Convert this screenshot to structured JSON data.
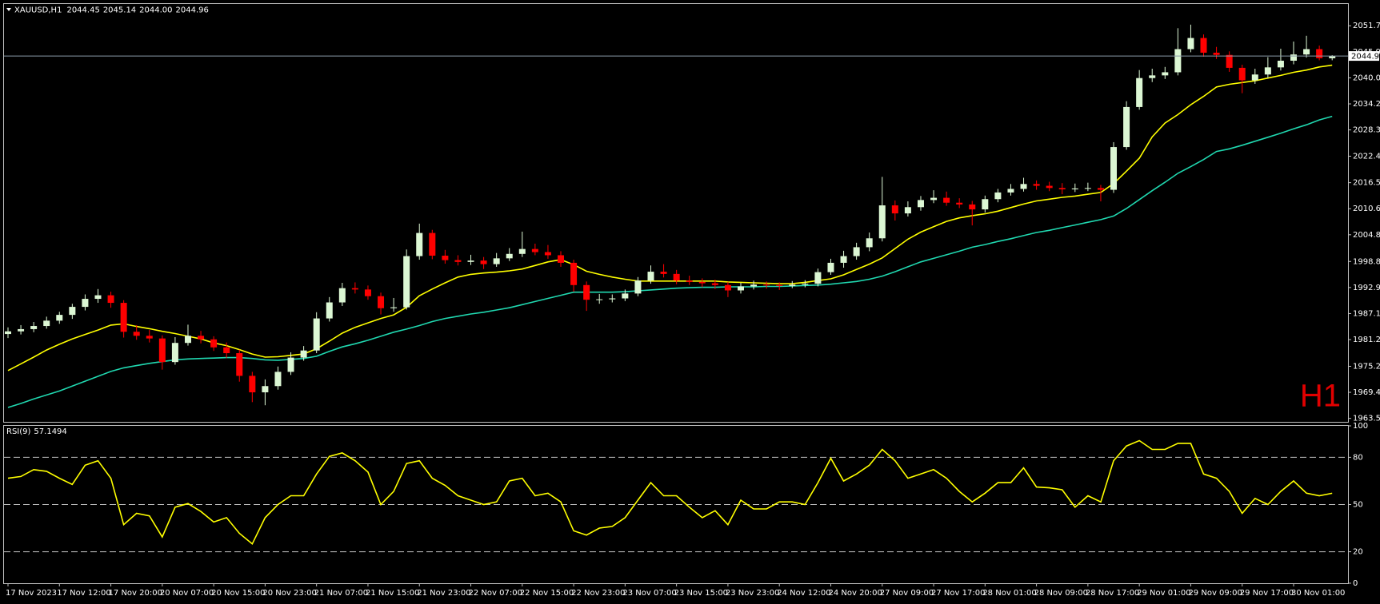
{
  "chart_data": [
    {
      "type": "candlestick",
      "title": "XAUUSD,H1",
      "timeframe_label": "H1",
      "value_labels": [
        "2044.45",
        "2045.14",
        "2044.00",
        "2044.96"
      ],
      "up_color": "#dcf7d4",
      "down_color": "#ff0000",
      "last_price_color": "#8a9aa8",
      "ylim": [
        1962.77,
        2056.64
      ],
      "yticks": [
        1963.55,
        {
          "value": 1969.4,
          "label": "1969.40"
        },
        1975.25,
        1981.25,
        {
          "value": 1987.1,
          "label": "1987.10"
        },
        1992.95,
        {
          "value": 1998.8,
          "label": "1998.80"
        },
        {
          "value": 2004.8,
          "label": "2004.80"
        },
        2010.65,
        {
          "value": 2016.5,
          "label": "2016.50"
        },
        2022.45,
        2028.35,
        {
          "value": 2034.2,
          "label": "2034.20"
        },
        2040.05,
        {
          "value": 2045.9,
          "label": "2045.90"
        },
        2051.75
      ],
      "categories": [
        "17 Nov 2023",
        null,
        null,
        null,
        "17 Nov 12:00",
        null,
        null,
        null,
        "17 Nov 20:00",
        null,
        null,
        null,
        "20 Nov 07:00",
        null,
        null,
        null,
        "20 Nov 15:00",
        null,
        null,
        null,
        "20 Nov 23:00",
        null,
        null,
        null,
        "21 Nov 07:00",
        null,
        null,
        null,
        "21 Nov 15:00",
        null,
        null,
        null,
        "21 Nov 23:00",
        null,
        null,
        null,
        "22 Nov 07:00",
        null,
        null,
        null,
        "22 Nov 15:00",
        null,
        null,
        null,
        "22 Nov 23:00",
        null,
        null,
        null,
        "23 Nov 07:00",
        null,
        null,
        null,
        "23 Nov 15:00",
        null,
        null,
        null,
        "23 Nov 23:00",
        null,
        null,
        null,
        "24 Nov 12:00",
        null,
        null,
        null,
        "24 Nov 20:00",
        null,
        null,
        null,
        "27 Nov 09:00",
        null,
        null,
        null,
        "27 Nov 17:00",
        null,
        null,
        null,
        "28 Nov 01:00",
        null,
        null,
        null,
        "28 Nov 09:00",
        null,
        null,
        null,
        "28 Nov 17:00",
        null,
        null,
        null,
        "29 Nov 01:00",
        null,
        null,
        null,
        "29 Nov 09:00",
        null,
        null,
        null,
        "29 Nov 17:00",
        null,
        null,
        null,
        "30 Nov 01:00",
        null,
        null,
        null
      ],
      "ohlc": [
        [
          1982.5,
          1984.0,
          1981.6,
          1983.1
        ],
        [
          1983.1,
          1984.5,
          1982.4,
          1983.6
        ],
        [
          1983.6,
          1985.2,
          1982.9,
          1984.3
        ],
        [
          1984.3,
          1986.4,
          1983.7,
          1985.5
        ],
        [
          1985.5,
          1987.5,
          1984.8,
          1986.8
        ],
        [
          1986.8,
          1989.3,
          1985.9,
          1988.6
        ],
        [
          1988.6,
          1991.4,
          1987.8,
          1990.4
        ],
        [
          1990.4,
          1992.6,
          1989.5,
          1991.2
        ],
        [
          1991.2,
          1992.0,
          1988.4,
          1989.5
        ],
        [
          1989.5,
          1990.1,
          1981.7,
          1983.0
        ],
        [
          1983.0,
          1984.5,
          1981.2,
          1982.1
        ],
        [
          1982.1,
          1983.4,
          1980.6,
          1981.5
        ],
        [
          1981.5,
          1982.2,
          1974.5,
          1976.2
        ],
        [
          1976.2,
          1981.8,
          1975.6,
          1980.5
        ],
        [
          1980.5,
          1984.6,
          1979.9,
          1982.1
        ],
        [
          1982.1,
          1983.2,
          1980.4,
          1981.3
        ],
        [
          1981.3,
          1982.0,
          1978.7,
          1979.5
        ],
        [
          1979.5,
          1980.6,
          1977.1,
          1978.2
        ],
        [
          1978.2,
          1979.0,
          1971.8,
          1973.1
        ],
        [
          1973.1,
          1974.0,
          1967.2,
          1969.4
        ],
        [
          1969.4,
          1972.3,
          1966.5,
          1970.8
        ],
        [
          1970.8,
          1975.2,
          1970.0,
          1974.0
        ],
        [
          1974.0,
          1978.4,
          1973.3,
          1977.2
        ],
        [
          1977.2,
          1979.8,
          1976.5,
          1978.8
        ],
        [
          1978.8,
          1987.4,
          1978.2,
          1986.0
        ],
        [
          1986.0,
          1990.8,
          1985.3,
          1989.6
        ],
        [
          1989.6,
          1994.0,
          1988.8,
          1992.8
        ],
        [
          1992.8,
          1994.1,
          1991.6,
          1992.5
        ],
        [
          1992.5,
          1993.4,
          1990.2,
          1991.0
        ],
        [
          1991.0,
          1991.8,
          1986.9,
          1988.3
        ],
        [
          1988.3,
          1990.6,
          1987.5,
          1988.5
        ],
        [
          1988.5,
          2001.5,
          1988.0,
          2000.0
        ],
        [
          2000.0,
          2007.3,
          1999.2,
          2005.2
        ],
        [
          2005.2,
          2005.9,
          1999.3,
          2000.1
        ],
        [
          2000.1,
          2001.4,
          1998.3,
          1999.1
        ],
        [
          1999.1,
          2000.2,
          1997.9,
          1998.7
        ],
        [
          1998.7,
          2000.3,
          1998.0,
          1999.0
        ],
        [
          1999.0,
          1999.8,
          1997.1,
          1998.2
        ],
        [
          1998.2,
          2000.7,
          1997.6,
          1999.5
        ],
        [
          1999.5,
          2001.8,
          1998.9,
          2000.5
        ],
        [
          2000.5,
          2005.5,
          1999.8,
          2001.6
        ],
        [
          2001.6,
          2002.8,
          2000.2,
          2000.9
        ],
        [
          2000.9,
          2002.5,
          1999.4,
          2000.2
        ],
        [
          2000.2,
          2001.1,
          1997.6,
          1998.5
        ],
        [
          1998.5,
          1999.2,
          1992.0,
          1993.5
        ],
        [
          1993.5,
          1994.3,
          1987.7,
          1990.2
        ],
        [
          1990.2,
          1991.5,
          1989.3,
          1990.3
        ],
        [
          1990.3,
          1991.4,
          1989.6,
          1990.5
        ],
        [
          1990.5,
          1992.5,
          1989.9,
          1991.6
        ],
        [
          1991.6,
          1995.3,
          1991.0,
          1994.5
        ],
        [
          1994.5,
          1997.9,
          1993.8,
          1996.5
        ],
        [
          1996.5,
          1998.2,
          1995.2,
          1996.0
        ],
        [
          1996.0,
          1996.9,
          1993.7,
          1994.5
        ],
        [
          1994.5,
          1995.6,
          1993.5,
          1994.2
        ],
        [
          1994.2,
          1995.0,
          1993.0,
          1993.9
        ],
        [
          1993.9,
          1994.7,
          1992.6,
          1993.5
        ],
        [
          1993.5,
          1994.2,
          1990.8,
          1992.3
        ],
        [
          1992.3,
          1994.0,
          1991.6,
          1993.2
        ],
        [
          1993.2,
          1994.5,
          1992.5,
          1993.6
        ],
        [
          1993.6,
          1994.3,
          1992.7,
          1993.5
        ],
        [
          1993.5,
          1994.1,
          1992.4,
          1993.3
        ],
        [
          1993.3,
          1994.4,
          1992.8,
          1993.6
        ],
        [
          1993.6,
          1994.6,
          1993.0,
          1993.8
        ],
        [
          1993.8,
          1997.2,
          1993.2,
          1996.4
        ],
        [
          1996.4,
          1999.4,
          1995.8,
          1998.5
        ],
        [
          1998.5,
          2001.2,
          1997.4,
          2000.0
        ],
        [
          2000.0,
          2003.0,
          1999.2,
          2002.0
        ],
        [
          2002.0,
          2005.3,
          2001.1,
          2004.0
        ],
        [
          2004.0,
          2017.8,
          2003.3,
          2011.4
        ],
        [
          2011.4,
          2012.5,
          2008.0,
          2009.6
        ],
        [
          2009.6,
          2012.3,
          2008.9,
          2011.0
        ],
        [
          2011.0,
          2013.5,
          2010.2,
          2012.6
        ],
        [
          2012.6,
          2014.8,
          2011.9,
          2013.1
        ],
        [
          2013.1,
          2014.5,
          2011.3,
          2012.0
        ],
        [
          2012.0,
          2013.0,
          2010.8,
          2011.6
        ],
        [
          2011.6,
          2012.4,
          2006.9,
          2010.5
        ],
        [
          2010.5,
          2013.6,
          2009.8,
          2012.8
        ],
        [
          2012.8,
          2015.1,
          2012.1,
          2014.3
        ],
        [
          2014.3,
          2016.2,
          2013.6,
          2015.1
        ],
        [
          2015.1,
          2017.6,
          2014.5,
          2016.2
        ],
        [
          2016.2,
          2017.0,
          2014.9,
          2015.8
        ],
        [
          2015.8,
          2016.7,
          2014.6,
          2015.3
        ],
        [
          2015.3,
          2016.4,
          2013.9,
          2015.0
        ],
        [
          2015.0,
          2016.3,
          2014.4,
          2015.2
        ],
        [
          2015.2,
          2016.5,
          2014.6,
          2015.3
        ],
        [
          2015.3,
          2016.0,
          2012.3,
          2014.9
        ],
        [
          2014.9,
          2025.6,
          2014.2,
          2024.5
        ],
        [
          2024.5,
          2034.8,
          2023.9,
          2033.5
        ],
        [
          2033.5,
          2041.8,
          2032.9,
          2040.0
        ],
        [
          2040.0,
          2042.1,
          2039.1,
          2040.6
        ],
        [
          2040.6,
          2042.5,
          2039.8,
          2041.3
        ],
        [
          2041.3,
          2051.2,
          2040.6,
          2046.5
        ],
        [
          2046.5,
          2052.0,
          2045.8,
          2049.0
        ],
        [
          2049.0,
          2049.8,
          2044.8,
          2045.7
        ],
        [
          2045.7,
          2047.0,
          2044.3,
          2045.2
        ],
        [
          2045.2,
          2046.0,
          2041.4,
          2042.3
        ],
        [
          2042.3,
          2043.0,
          2036.6,
          2039.5
        ],
        [
          2039.5,
          2042.1,
          2038.7,
          2040.8
        ],
        [
          2040.8,
          2044.7,
          2040.0,
          2042.4
        ],
        [
          2042.4,
          2046.6,
          2041.7,
          2043.9
        ],
        [
          2043.9,
          2048.2,
          2043.1,
          2045.3
        ],
        [
          2045.3,
          2049.5,
          2044.6,
          2046.5
        ],
        [
          2046.5,
          2047.3,
          2044.0,
          2044.45
        ],
        [
          2044.45,
          2045.14,
          2044.0,
          2044.96
        ]
      ],
      "series": [
        {
          "color": "#ffff00",
          "values": [
            1974.3,
            1975.8,
            1977.3,
            1978.9,
            1980.2,
            1981.4,
            1982.4,
            1983.4,
            1984.5,
            1984.8,
            1984.2,
            1983.7,
            1983.1,
            1982.6,
            1982.0,
            1981.4,
            1980.5,
            1979.9,
            1979.0,
            1978.0,
            1977.3,
            1977.4,
            1977.7,
            1978.0,
            1979.2,
            1980.9,
            1982.7,
            1984.0,
            1985.0,
            1986.0,
            1986.8,
            1988.5,
            1991.1,
            1992.6,
            1994.0,
            1995.3,
            1995.9,
            1996.2,
            1996.4,
            1996.7,
            1997.1,
            1997.9,
            1998.7,
            1999.2,
            1998.1,
            1996.6,
            1995.9,
            1995.3,
            1994.8,
            1994.4,
            1994.4,
            1994.4,
            1994.4,
            1994.4,
            1994.4,
            1994.4,
            1994.2,
            1994.1,
            1994.0,
            1993.9,
            1993.8,
            1993.8,
            1994.1,
            1994.5,
            1994.9,
            1995.8,
            1997.0,
            1998.2,
            1999.6,
            2001.7,
            2003.8,
            2005.4,
            2006.6,
            2007.8,
            2008.6,
            2009.1,
            2009.5,
            2010.1,
            2010.9,
            2011.7,
            2012.4,
            2012.8,
            2013.2,
            2013.5,
            2013.9,
            2014.3,
            2016.3,
            2019.1,
            2022.0,
            2026.8,
            2029.9,
            2031.8,
            2034.0,
            2035.9,
            2038.0,
            2038.6,
            2039.0,
            2039.4,
            2040.0,
            2040.6,
            2041.3,
            2041.8,
            2042.5,
            2042.9
          ]
        },
        {
          "color": "#20d8b0",
          "values": [
            1966.0,
            1966.9,
            1967.9,
            1968.8,
            1969.7,
            1970.8,
            1971.9,
            1973.0,
            1974.1,
            1974.9,
            1975.4,
            1975.9,
            1976.3,
            1976.7,
            1976.9,
            1977.0,
            1977.1,
            1977.2,
            1977.2,
            1977.0,
            1976.7,
            1976.6,
            1976.8,
            1977.0,
            1977.5,
            1978.6,
            1979.6,
            1980.3,
            1981.1,
            1982.0,
            1982.9,
            1983.6,
            1984.4,
            1985.3,
            1986.0,
            1986.5,
            1987.0,
            1987.4,
            1987.9,
            1988.4,
            1989.1,
            1989.8,
            1990.5,
            1991.2,
            1991.9,
            1991.9,
            1991.9,
            1991.9,
            1992.0,
            1992.2,
            1992.4,
            1992.6,
            1992.8,
            1992.9,
            1993.0,
            1993.0,
            1993.1,
            1993.1,
            1993.1,
            1993.2,
            1993.2,
            1993.3,
            1993.4,
            1993.5,
            1993.7,
            1994.0,
            1994.3,
            1994.8,
            1995.5,
            1996.5,
            1997.6,
            1998.7,
            1999.5,
            2000.3,
            2001.1,
            2002.0,
            2002.6,
            2003.3,
            2003.9,
            2004.6,
            2005.3,
            2005.8,
            2006.4,
            2007.0,
            2007.6,
            2008.2,
            2009.0,
            2010.7,
            2012.7,
            2014.7,
            2016.6,
            2018.6,
            2020.1,
            2021.7,
            2023.5,
            2024.1,
            2024.9,
            2025.8,
            2026.7,
            2027.6,
            2028.6,
            2029.5,
            2030.6,
            2031.4
          ]
        }
      ]
    },
    {
      "type": "line",
      "title": "RSI(9)",
      "ylim": [
        0,
        100
      ],
      "yticks": [
        0,
        20,
        50,
        80,
        100
      ],
      "series": [
        {
          "color": "#ffff00",
          "values": [
            66.7,
            67.8,
            72.2,
            71.1,
            66.7,
            62.8,
            75,
            77.8,
            66.7,
            37.2,
            44.4,
            42.8,
            29.4,
            48.3,
            50.6,
            45.6,
            38.9,
            41.7,
            31.7,
            25,
            41.7,
            50,
            55.6,
            55.6,
            69.4,
            80.6,
            82.8,
            77.8,
            70.6,
            50,
            58.3,
            76.1,
            77.8,
            66.7,
            62.2,
            55.6,
            52.8,
            50,
            51.7,
            65,
            66.7,
            55.6,
            57.2,
            51.7,
            33.3,
            30.6,
            35,
            36.1,
            41.7,
            52.8,
            63.9,
            55.6,
            55.6,
            48.3,
            41.7,
            46.1,
            37.2,
            52.8,
            47.2,
            47.2,
            51.7,
            51.7,
            50,
            63.9,
            79.4,
            65,
            69.4,
            75,
            85,
            77.8,
            66.7,
            69.4,
            72.2,
            66.7,
            58.3,
            51.7,
            57.2,
            63.9,
            63.9,
            73.3,
            61.1,
            60.6,
            59.4,
            48.3,
            55.6,
            51.7,
            77.8,
            87.2,
            90.6,
            85,
            85,
            88.9,
            88.9,
            69.4,
            66.7,
            58.3,
            44.4,
            53.9,
            50,
            58.3,
            65,
            57.2,
            55.6,
            57.1494
          ]
        }
      ]
    }
  ]
}
